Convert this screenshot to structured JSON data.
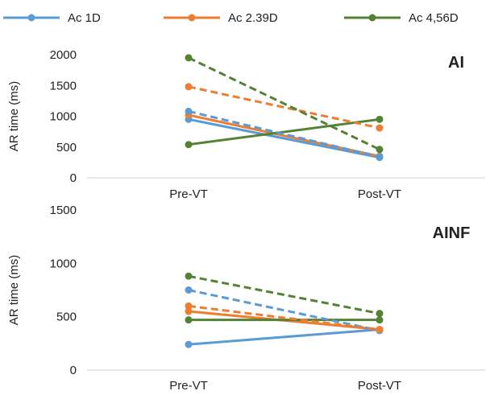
{
  "legend": [
    {
      "name": "Ac 1D",
      "color": "#5b9bd5"
    },
    {
      "name": "Ac 2.39D",
      "color": "#ed7d31"
    },
    {
      "name": "Ac 4,56D",
      "color": "#548235"
    }
  ],
  "chart_data": [
    {
      "type": "line",
      "title": "AI",
      "ylabel": "AR time (ms)",
      "ylim": [
        0,
        2000
      ],
      "yticks": [
        "0",
        "500",
        "1000",
        "1500",
        "2000"
      ],
      "categories": [
        "Pre-VT",
        "Post-VT"
      ],
      "series": [
        {
          "name": "Ac 1D",
          "style": "solid",
          "color": "#5b9bd5",
          "values": [
            950,
            330
          ]
        },
        {
          "name": "Ac 2.39D",
          "style": "solid",
          "color": "#ed7d31",
          "values": [
            1020,
            350
          ]
        },
        {
          "name": "Ac 4,56D",
          "style": "solid",
          "color": "#548235",
          "values": [
            540,
            950
          ]
        },
        {
          "name": "Ac 1D",
          "style": "dashed",
          "color": "#5b9bd5",
          "values": [
            1080,
            340
          ]
        },
        {
          "name": "Ac 2.39D",
          "style": "dashed",
          "color": "#ed7d31",
          "values": [
            1480,
            810
          ]
        },
        {
          "name": "Ac 4,56D",
          "style": "dashed",
          "color": "#548235",
          "values": [
            1950,
            460
          ]
        }
      ]
    },
    {
      "type": "line",
      "title": "AINF",
      "ylabel": "AR time (ms)",
      "ylim": [
        0,
        1500
      ],
      "yticks": [
        "0",
        "500",
        "1000",
        "1500"
      ],
      "categories": [
        "Pre-VT",
        "Post-VT"
      ],
      "series": [
        {
          "name": "Ac 1D",
          "style": "solid",
          "color": "#5b9bd5",
          "values": [
            240,
            380
          ]
        },
        {
          "name": "Ac 2.39D",
          "style": "solid",
          "color": "#ed7d31",
          "values": [
            550,
            380
          ]
        },
        {
          "name": "Ac 4,56D",
          "style": "solid",
          "color": "#548235",
          "values": [
            470,
            470
          ]
        },
        {
          "name": "Ac 1D",
          "style": "dashed",
          "color": "#5b9bd5",
          "values": [
            750,
            370
          ]
        },
        {
          "name": "Ac 2.39D",
          "style": "dashed",
          "color": "#ed7d31",
          "values": [
            600,
            380
          ]
        },
        {
          "name": "Ac 4,56D",
          "style": "dashed",
          "color": "#548235",
          "values": [
            880,
            530
          ]
        }
      ]
    }
  ]
}
